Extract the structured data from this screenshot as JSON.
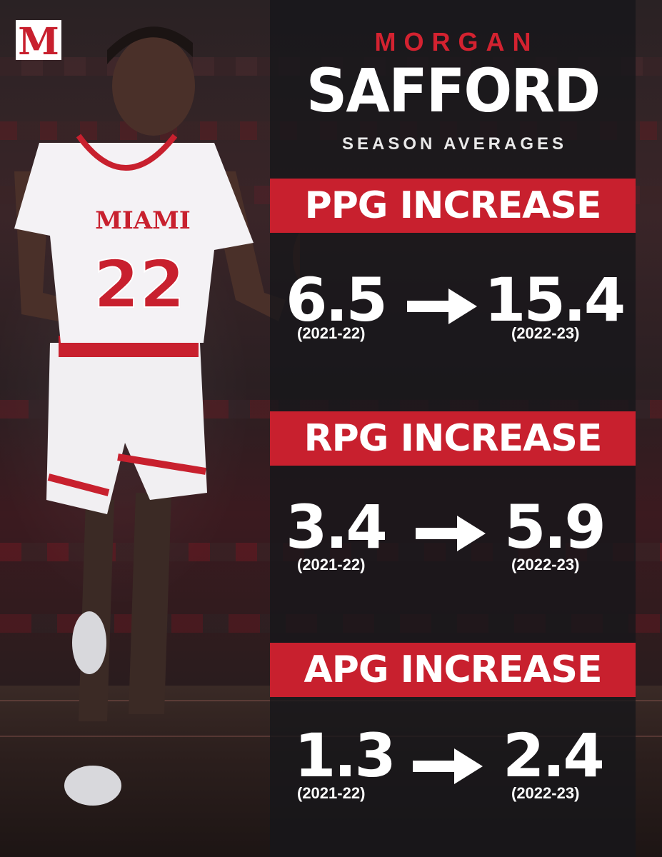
{
  "player": {
    "first_name": "MORGAN",
    "last_name": "SAFFORD",
    "subtitle": "SEASON AVERAGES",
    "jersey_school": "MIAMI",
    "jersey_number": "22"
  },
  "brand": {
    "logo_letter": "M",
    "accent_color": "#c8202e",
    "panel_color": "#16161a",
    "text_color": "#ffffff"
  },
  "stats": [
    {
      "title": "PPG INCREASE",
      "before_value": "6.5",
      "before_season": "(2021-22)",
      "after_value": "15.4",
      "after_season": "(2022-23)"
    },
    {
      "title": "RPG INCREASE",
      "before_value": "3.4",
      "before_season": "(2021-22)",
      "after_value": "5.9",
      "after_season": "(2022-23)"
    },
    {
      "title": "APG INCREASE",
      "before_value": "1.3",
      "before_season": "(2021-22)",
      "after_value": "2.4",
      "after_season": "(2022-23)"
    }
  ],
  "icons": {
    "arrow": "right-arrow-icon",
    "logo": "miami-m-logo-icon"
  }
}
